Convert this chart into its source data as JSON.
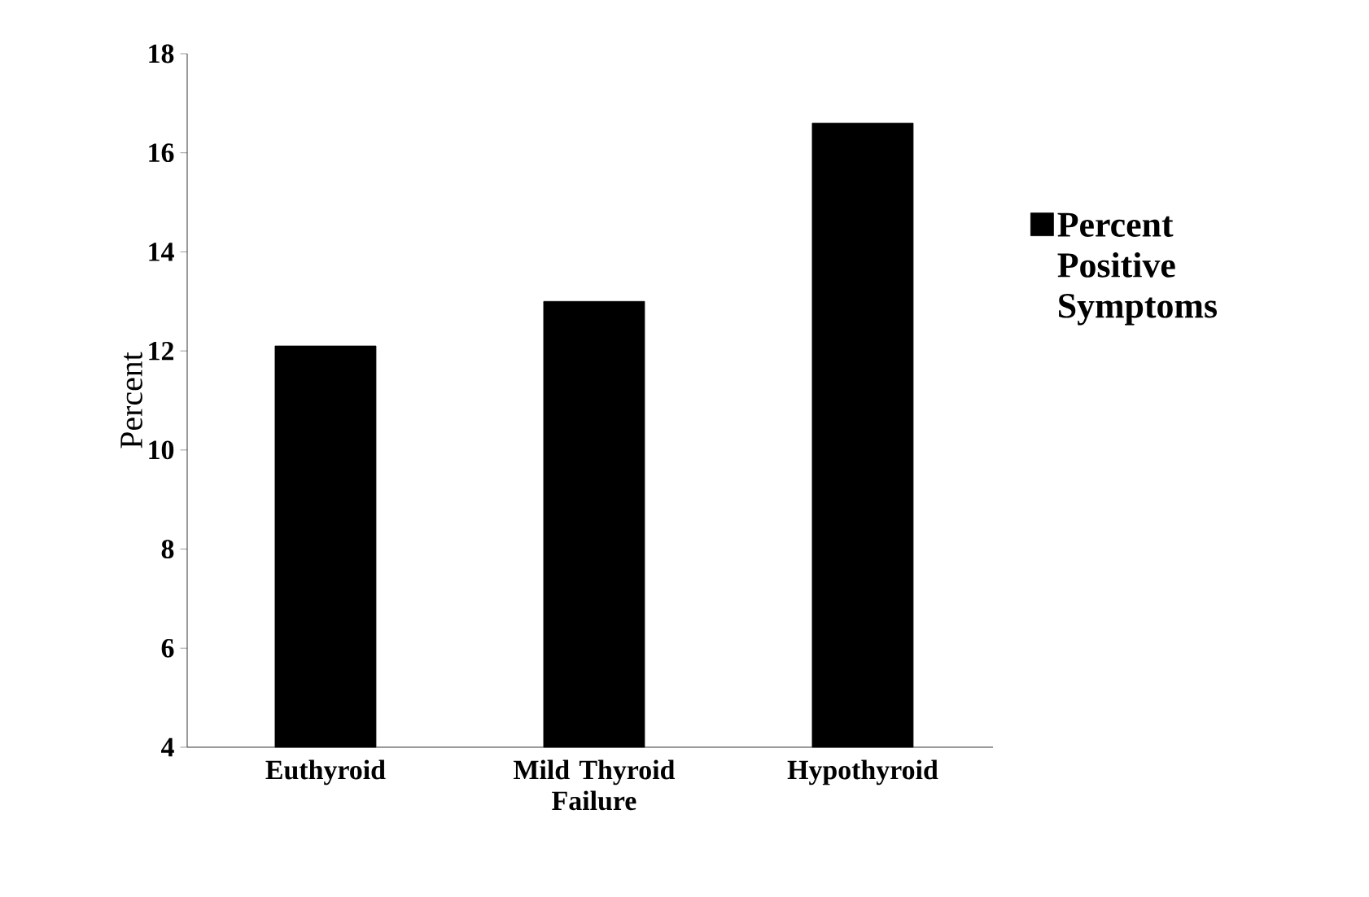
{
  "chart_data": {
    "type": "bar",
    "ylabel": "Percent",
    "categories": [
      "Euthyroid",
      "Mild Thyroid Failure",
      "Hypothyroid"
    ],
    "series": [
      {
        "name": "Percent Positive Symptoms",
        "color": "#000000",
        "values": [
          12.1,
          13.0,
          16.6
        ]
      }
    ],
    "ylim": [
      4,
      18
    ],
    "yticks": [
      4,
      6,
      8,
      10,
      12,
      14,
      16,
      18
    ],
    "grid": false,
    "legend": "right"
  }
}
